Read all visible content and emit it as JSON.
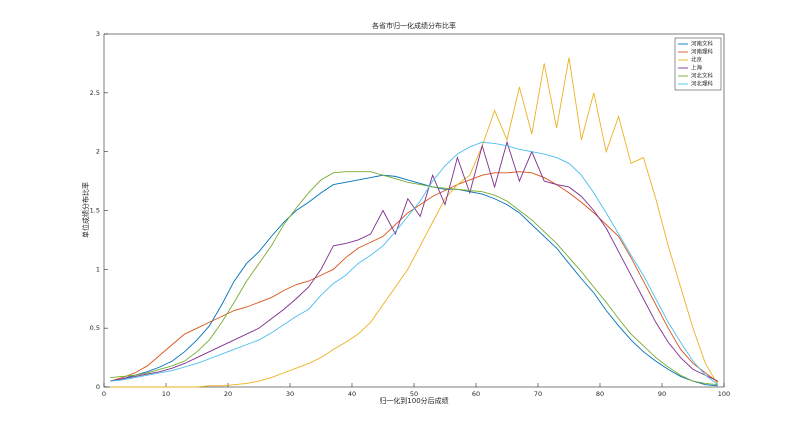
{
  "chart_data": {
    "type": "line",
    "title": "各省市归一化成绩分布比率",
    "xlabel": "归一化到100分后成绩",
    "ylabel": "单位成绩分布比率",
    "x": [
      1,
      3,
      5,
      7,
      9,
      11,
      13,
      15,
      17,
      19,
      21,
      23,
      25,
      27,
      29,
      31,
      33,
      35,
      37,
      39,
      41,
      43,
      45,
      47,
      49,
      51,
      53,
      55,
      57,
      59,
      61,
      63,
      65,
      67,
      69,
      71,
      73,
      75,
      77,
      79,
      81,
      83,
      85,
      87,
      89,
      91,
      93,
      95,
      97,
      99
    ],
    "series": [
      {
        "name": "河南文科",
        "color": "#0072BD",
        "values": [
          0.05,
          0.07,
          0.1,
          0.13,
          0.17,
          0.22,
          0.3,
          0.4,
          0.52,
          0.7,
          0.9,
          1.05,
          1.15,
          1.28,
          1.4,
          1.5,
          1.57,
          1.65,
          1.72,
          1.74,
          1.76,
          1.78,
          1.8,
          1.79,
          1.76,
          1.73,
          1.7,
          1.68,
          1.68,
          1.66,
          1.64,
          1.6,
          1.55,
          1.48,
          1.38,
          1.28,
          1.18,
          1.05,
          0.92,
          0.8,
          0.65,
          0.52,
          0.4,
          0.3,
          0.22,
          0.15,
          0.09,
          0.05,
          0.02,
          0.01
        ]
      },
      {
        "name": "河南理科",
        "color": "#D95319",
        "values": [
          0.05,
          0.08,
          0.12,
          0.18,
          0.27,
          0.36,
          0.45,
          0.5,
          0.55,
          0.6,
          0.65,
          0.68,
          0.72,
          0.76,
          0.82,
          0.87,
          0.9,
          0.95,
          1.0,
          1.1,
          1.18,
          1.23,
          1.28,
          1.38,
          1.48,
          1.55,
          1.62,
          1.67,
          1.72,
          1.76,
          1.8,
          1.82,
          1.82,
          1.83,
          1.82,
          1.78,
          1.72,
          1.65,
          1.57,
          1.48,
          1.38,
          1.28,
          1.1,
          0.9,
          0.7,
          0.5,
          0.32,
          0.2,
          0.12,
          0.04
        ]
      },
      {
        "name": "北京",
        "color": "#EDB120",
        "values": [
          0.0,
          0.0,
          0.0,
          0.0,
          0.0,
          0.0,
          0.0,
          0.0,
          0.01,
          0.01,
          0.02,
          0.03,
          0.05,
          0.08,
          0.12,
          0.16,
          0.2,
          0.25,
          0.32,
          0.38,
          0.45,
          0.55,
          0.7,
          0.85,
          1.0,
          1.2,
          1.4,
          1.6,
          1.72,
          1.8,
          2.05,
          2.35,
          2.1,
          2.55,
          2.15,
          2.75,
          2.2,
          2.8,
          2.1,
          2.5,
          2.0,
          2.3,
          1.9,
          1.95,
          1.6,
          1.2,
          0.85,
          0.5,
          0.2,
          0.02
        ]
      },
      {
        "name": "上海",
        "color": "#7E2F8E",
        "values": [
          0.05,
          0.07,
          0.09,
          0.11,
          0.13,
          0.16,
          0.2,
          0.25,
          0.3,
          0.35,
          0.4,
          0.45,
          0.5,
          0.58,
          0.66,
          0.75,
          0.85,
          1.0,
          1.2,
          1.22,
          1.25,
          1.3,
          1.5,
          1.3,
          1.6,
          1.45,
          1.8,
          1.55,
          1.95,
          1.65,
          2.05,
          1.7,
          2.08,
          1.75,
          2.0,
          1.75,
          1.72,
          1.7,
          1.62,
          1.5,
          1.35,
          1.15,
          0.95,
          0.75,
          0.55,
          0.38,
          0.25,
          0.15,
          0.1,
          0.05
        ]
      },
      {
        "name": "河北文科",
        "color": "#77AC30",
        "values": [
          0.08,
          0.09,
          0.1,
          0.12,
          0.15,
          0.18,
          0.22,
          0.3,
          0.4,
          0.55,
          0.72,
          0.9,
          1.05,
          1.2,
          1.38,
          1.52,
          1.65,
          1.76,
          1.82,
          1.83,
          1.83,
          1.83,
          1.8,
          1.77,
          1.74,
          1.72,
          1.7,
          1.69,
          1.68,
          1.67,
          1.66,
          1.63,
          1.58,
          1.5,
          1.42,
          1.32,
          1.22,
          1.1,
          0.98,
          0.85,
          0.72,
          0.58,
          0.45,
          0.35,
          0.25,
          0.17,
          0.1,
          0.05,
          0.03,
          0.02
        ]
      },
      {
        "name": "河北理科",
        "color": "#4DBEEE",
        "values": [
          0.05,
          0.06,
          0.08,
          0.1,
          0.12,
          0.14,
          0.17,
          0.2,
          0.24,
          0.28,
          0.32,
          0.36,
          0.4,
          0.46,
          0.53,
          0.6,
          0.66,
          0.78,
          0.88,
          0.95,
          1.05,
          1.12,
          1.2,
          1.32,
          1.45,
          1.58,
          1.75,
          1.88,
          1.98,
          2.04,
          2.08,
          2.07,
          2.05,
          2.02,
          2.0,
          1.98,
          1.95,
          1.9,
          1.8,
          1.65,
          1.48,
          1.3,
          1.12,
          0.95,
          0.75,
          0.55,
          0.38,
          0.22,
          0.1,
          0.02
        ]
      }
    ],
    "xlim": [
      0,
      100
    ],
    "xticks": [
      0,
      10,
      20,
      30,
      40,
      50,
      60,
      70,
      80,
      90,
      100
    ],
    "ylim": [
      0,
      3
    ],
    "yticks": [
      0,
      0.5,
      1,
      1.5,
      2,
      2.5,
      3
    ],
    "grid": false,
    "legend": "top-right"
  }
}
